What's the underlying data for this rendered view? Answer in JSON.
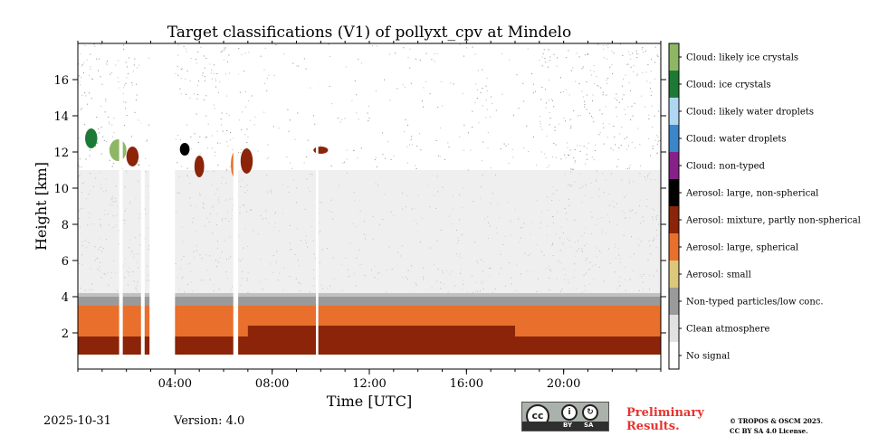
{
  "footer": {
    "date": "2025-10-31",
    "version": "Version: 4.0",
    "preliminary_line1": "Preliminary",
    "preliminary_line2": "Results.",
    "copyright_line1": "© TROPOS & OSCM 2025.",
    "copyright_line2": "CC BY SA 4.0 License.",
    "license_badge": {
      "cc": "cc",
      "by": "BY",
      "sa": "SA"
    }
  },
  "chart_data": {
    "type": "heatmap",
    "title": "Target classifications (V1) of pollyxt_cpv at Mindelo",
    "xlabel": "Time [UTC]",
    "ylabel": "Height [km]",
    "xlim": [
      0,
      24
    ],
    "ylim": [
      0,
      18
    ],
    "x_ticks": [
      {
        "value": 4,
        "label": "04:00"
      },
      {
        "value": 8,
        "label": "08:00"
      },
      {
        "value": 12,
        "label": "12:00"
      },
      {
        "value": 16,
        "label": "16:00"
      },
      {
        "value": 20,
        "label": "20:00"
      }
    ],
    "x_minor_ticks": [
      0,
      1,
      2,
      3,
      4,
      5,
      6,
      7,
      8,
      9,
      10,
      11,
      12,
      13,
      14,
      15,
      16,
      17,
      18,
      19,
      20,
      21,
      22,
      23,
      24
    ],
    "y_ticks": [
      2,
      4,
      6,
      8,
      10,
      12,
      14,
      16
    ],
    "classes": [
      {
        "label": "Cloud: likely ice crystals",
        "color": "#8db765"
      },
      {
        "label": "Cloud: ice crystals",
        "color": "#1d7a36"
      },
      {
        "label": "Cloud: likely water droplets",
        "color": "#b0d7f2"
      },
      {
        "label": "Cloud: water droplets",
        "color": "#3a86c8"
      },
      {
        "label": "Cloud: non-typed",
        "color": "#872188"
      },
      {
        "label": "Aerosol: large, non-spherical",
        "color": "#000000"
      },
      {
        "label": "Aerosol: mixture, partly non-spherical",
        "color": "#8b2408"
      },
      {
        "label": "Aerosol: large, spherical",
        "color": "#e8702c"
      },
      {
        "label": "Aerosol: small",
        "color": "#dcc77a"
      },
      {
        "label": "Non-typed particles/low conc.",
        "color": "#9a9a9a"
      },
      {
        "label": "Clean atmosphere",
        "color": "#e1e1e1"
      },
      {
        "label": "No signal",
        "color": "#ffffff"
      }
    ],
    "layers": [
      {
        "class": "Aerosol: mixture, partly non-spherical",
        "t0": 0,
        "t1": 24,
        "h0": 0.8,
        "h1": 1.8
      },
      {
        "class": "Aerosol: large, spherical",
        "t0": 0,
        "t1": 24,
        "h0": 1.8,
        "h1": 3.9
      },
      {
        "class": "Aerosol: mixture, partly non-spherical",
        "t0": 7,
        "t1": 18,
        "h0": 1.6,
        "h1": 2.4
      },
      {
        "class": "Aerosol: mixture, partly non-spherical",
        "t0": 9,
        "t1": 19,
        "h0": 0.8,
        "h1": 1.2
      },
      {
        "class": "Non-typed particles/low conc.",
        "t0": 0,
        "t1": 24,
        "h0": 3.5,
        "h1": 4.2
      },
      {
        "class": "Clean atmosphere",
        "t0": 0,
        "t1": 24,
        "h0": 4,
        "h1": 11
      }
    ],
    "cloud_patches": [
      {
        "class": "Cloud: ice crystals",
        "t0": 0.3,
        "t1": 0.8,
        "h0": 12.2,
        "h1": 13.3
      },
      {
        "class": "Cloud: likely ice crystals",
        "t0": 1.3,
        "t1": 2.0,
        "h0": 11.5,
        "h1": 12.7
      },
      {
        "class": "Aerosol: mixture, partly non-spherical",
        "t0": 2.0,
        "t1": 2.5,
        "h0": 11.2,
        "h1": 12.3
      },
      {
        "class": "Aerosol: large, non-spherical",
        "t0": 4.2,
        "t1": 4.6,
        "h0": 11.8,
        "h1": 12.5
      },
      {
        "class": "Aerosol: mixture, partly non-spherical",
        "t0": 4.8,
        "t1": 5.2,
        "h0": 10.6,
        "h1": 11.8
      },
      {
        "class": "Aerosol: large, spherical",
        "t0": 6.3,
        "t1": 6.6,
        "h0": 10.6,
        "h1": 12.0
      },
      {
        "class": "Aerosol: mixture, partly non-spherical",
        "t0": 6.7,
        "t1": 7.2,
        "h0": 10.8,
        "h1": 12.2
      },
      {
        "class": "Aerosol: mixture, partly non-spherical",
        "t0": 9.7,
        "t1": 10.3,
        "h0": 11.9,
        "h1": 12.3
      }
    ],
    "gaps": [
      {
        "t0": 1.7,
        "t1": 1.85
      },
      {
        "t0": 2.6,
        "t1": 2.75
      },
      {
        "t0": 2.95,
        "t1": 4.0
      },
      {
        "t0": 6.4,
        "t1": 6.6
      },
      {
        "t0": 9.8,
        "t1": 9.9
      }
    ]
  }
}
